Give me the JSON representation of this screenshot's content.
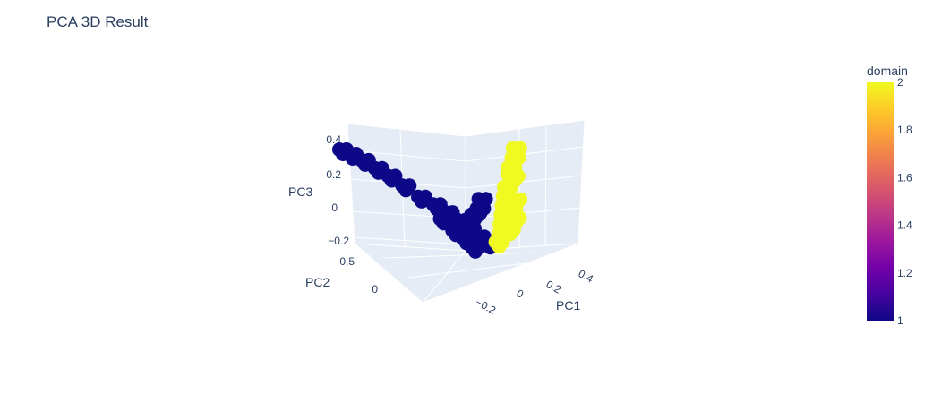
{
  "chart_data": {
    "type": "scatter",
    "title": "PCA 3D Result",
    "axes": {
      "x": {
        "label": "PC1",
        "ticks": [
          "−0.2",
          "0",
          "0.2",
          "0.4"
        ],
        "range": [
          -0.3,
          0.45
        ]
      },
      "y": {
        "label": "PC2",
        "ticks": [
          "0",
          "0.5"
        ],
        "range": [
          -0.4,
          0.7
        ]
      },
      "z": {
        "label": "PC3",
        "ticks": [
          "−0.2",
          "0",
          "0.2",
          "0.4"
        ],
        "range": [
          -0.25,
          0.45
        ]
      }
    },
    "colorbar": {
      "title": "domain",
      "ticks": [
        "1",
        "1.2",
        "1.4",
        "1.6",
        "1.8",
        "2"
      ],
      "range": [
        1,
        2
      ],
      "colorscale": [
        "#0d0887",
        "#46039f",
        "#7201a8",
        "#9c179e",
        "#bd3786",
        "#d8576b",
        "#ed7953",
        "#fb9f3a",
        "#fdca26",
        "#f0f921"
      ]
    },
    "series": [
      {
        "domain": 1,
        "color": "#0d0887",
        "points": [
          [
            -0.33,
            0.4,
            0.45
          ],
          [
            -0.3,
            0.38,
            0.42
          ],
          [
            -0.26,
            0.36,
            0.38
          ],
          [
            -0.22,
            0.33,
            0.33
          ],
          [
            -0.18,
            0.3,
            0.28
          ],
          [
            -0.14,
            0.26,
            0.22
          ],
          [
            -0.1,
            0.2,
            0.15
          ],
          [
            -0.06,
            0.15,
            0.1
          ],
          [
            -0.03,
            0.1,
            0.05
          ],
          [
            0.0,
            0.05,
            0.0
          ],
          [
            0.02,
            0.0,
            -0.05
          ],
          [
            0.04,
            -0.05,
            -0.1
          ],
          [
            0.06,
            -0.1,
            -0.14
          ],
          [
            -0.05,
            0.1,
            0.02
          ],
          [
            -0.02,
            0.05,
            -0.05
          ],
          [
            0.01,
            0.02,
            -0.1
          ],
          [
            0.03,
            -0.02,
            -0.15
          ],
          [
            0.05,
            0.05,
            0.02
          ],
          [
            0.08,
            0.08,
            0.05
          ],
          [
            0.1,
            0.12,
            0.1
          ]
        ]
      },
      {
        "domain": 2,
        "color": "#f0f921",
        "points": [
          [
            0.3,
            0.35,
            0.35
          ],
          [
            0.28,
            0.3,
            0.3
          ],
          [
            0.25,
            0.25,
            0.25
          ],
          [
            0.27,
            0.32,
            0.22
          ],
          [
            0.22,
            0.2,
            0.15
          ],
          [
            0.2,
            0.15,
            0.1
          ],
          [
            0.24,
            0.18,
            0.2
          ],
          [
            0.18,
            0.1,
            0.05
          ],
          [
            0.16,
            0.05,
            0.0
          ],
          [
            0.2,
            0.08,
            0.02
          ],
          [
            0.14,
            0.0,
            -0.05
          ],
          [
            0.12,
            -0.05,
            -0.1
          ],
          [
            0.16,
            -0.02,
            -0.08
          ],
          [
            0.1,
            -0.08,
            -0.14
          ],
          [
            0.22,
            0.1,
            -0.02
          ],
          [
            0.26,
            0.22,
            0.08
          ]
        ]
      }
    ]
  }
}
